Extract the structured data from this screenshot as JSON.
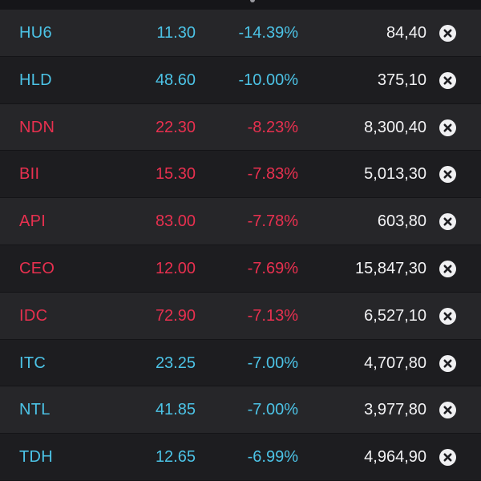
{
  "colors": {
    "up_color": "#4cc3e6",
    "down_color": "#e8304f",
    "volume_color": "#f2f2f4"
  },
  "icons": {
    "remove": "close-circle-icon"
  },
  "rows": [
    {
      "symbol": "HU6",
      "price": "11.30",
      "change_pct": "-14.39%",
      "volume": "84,40",
      "color": "#4cc3e6"
    },
    {
      "symbol": "HLD",
      "price": "48.60",
      "change_pct": "-10.00%",
      "volume": "375,10",
      "color": "#4cc3e6"
    },
    {
      "symbol": "NDN",
      "price": "22.30",
      "change_pct": "-8.23%",
      "volume": "8,300,40",
      "color": "#e8304f"
    },
    {
      "symbol": "BII",
      "price": "15.30",
      "change_pct": "-7.83%",
      "volume": "5,013,30",
      "color": "#e8304f"
    },
    {
      "symbol": "API",
      "price": "83.00",
      "change_pct": "-7.78%",
      "volume": "603,80",
      "color": "#e8304f"
    },
    {
      "symbol": "CEO",
      "price": "12.00",
      "change_pct": "-7.69%",
      "volume": "15,847,30",
      "color": "#e8304f"
    },
    {
      "symbol": "IDC",
      "price": "72.90",
      "change_pct": "-7.13%",
      "volume": "6,527,10",
      "color": "#e8304f"
    },
    {
      "symbol": "ITC",
      "price": "23.25",
      "change_pct": "-7.00%",
      "volume": "4,707,80",
      "color": "#4cc3e6"
    },
    {
      "symbol": "NTL",
      "price": "41.85",
      "change_pct": "-7.00%",
      "volume": "3,977,80",
      "color": "#4cc3e6"
    },
    {
      "symbol": "TDH",
      "price": "12.65",
      "change_pct": "-6.99%",
      "volume": "4,964,90",
      "color": "#4cc3e6"
    }
  ]
}
